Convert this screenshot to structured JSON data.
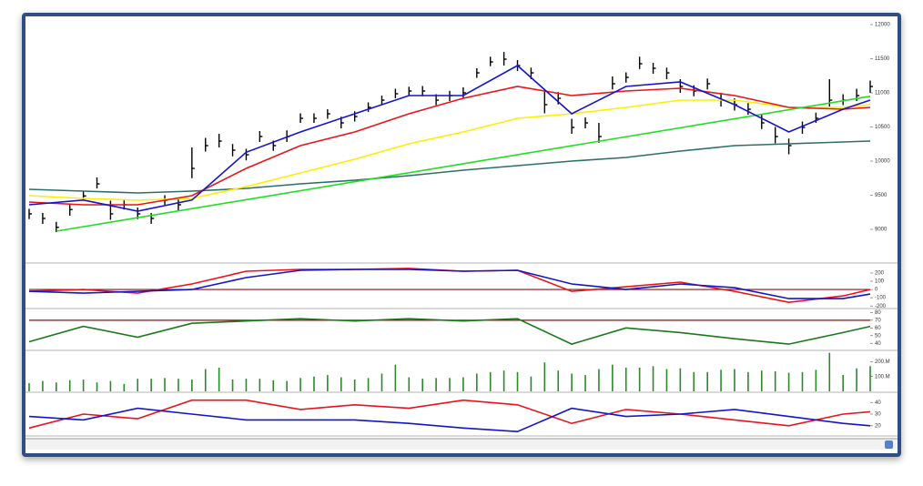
{
  "chart_data": [
    {
      "type": "ohlc",
      "xlim": [
        0,
        62
      ],
      "ylim": [
        8520,
        12067
      ],
      "yticks": [
        12000,
        11500,
        11000,
        10500,
        10000,
        9500,
        9000
      ],
      "bars": {
        "color": "#000000",
        "high": [
          9300,
          9240,
          9110,
          9380,
          9560,
          9760,
          9420,
          9430,
          9320,
          9240,
          9500,
          9440,
          10200,
          10340,
          10400,
          10250,
          10180,
          10440,
          10300,
          10450,
          10700,
          10700,
          10760,
          10650,
          10730,
          10860,
          10960,
          11060,
          11090,
          11100,
          10980,
          11030,
          11080,
          11360,
          11530,
          11600,
          11480,
          11370,
          11030,
          11010,
          10620,
          10640,
          10560,
          11240,
          11300,
          11530,
          11440,
          11370,
          11200,
          11110,
          11210,
          11000,
          10920,
          10850,
          10680,
          10500,
          10330,
          10580,
          10710,
          11200,
          10980,
          11060,
          11180
        ],
        "low": [
          9150,
          9080,
          8960,
          9200,
          9420,
          9600,
          9140,
          9290,
          9150,
          9080,
          9360,
          9280,
          9750,
          10140,
          10200,
          10070,
          10010,
          10280,
          10150,
          10280,
          10560,
          10560,
          10620,
          10480,
          10580,
          10720,
          10820,
          10920,
          10960,
          10950,
          10820,
          10880,
          10930,
          11220,
          11390,
          11400,
          11320,
          11200,
          10700,
          10830,
          10400,
          10480,
          10270,
          11050,
          11150,
          11350,
          11280,
          11200,
          11000,
          10950,
          11050,
          10800,
          10740,
          10680,
          10470,
          10260,
          10100,
          10400,
          10560,
          10800,
          10820,
          10880,
          11000
        ],
        "close": [
          9227,
          9160,
          9030,
          9290,
          9490,
          9667,
          9227,
          9360,
          9227,
          9160,
          9427,
          9360,
          9893,
          10227,
          10293,
          10160,
          10093,
          10360,
          10227,
          10360,
          10627,
          10627,
          10693,
          10560,
          10653,
          10787,
          10893,
          10987,
          11027,
          11027,
          10893,
          10960,
          11000,
          11293,
          11453,
          11493,
          11400,
          11293,
          10827,
          10920,
          10493,
          10560,
          10360,
          11133,
          11227,
          11427,
          11360,
          11293,
          11093,
          11027,
          11133,
          10893,
          10827,
          10760,
          10560,
          10360,
          10227,
          10493,
          10627,
          10893,
          10893,
          10960,
          11093
        ]
      },
      "series": [
        {
          "color": "#2e6e6a",
          "x": [
            0,
            4,
            8,
            12,
            16,
            20,
            24,
            28,
            32,
            36,
            40,
            44,
            48,
            52,
            56,
            60,
            62
          ],
          "values": [
            9587,
            9560,
            9533,
            9560,
            9600,
            9667,
            9720,
            9787,
            9867,
            9933,
            10000,
            10053,
            10147,
            10227,
            10253,
            10280,
            10293
          ]
        },
        {
          "color": "#ffee00",
          "x": [
            0,
            4,
            8,
            12,
            16,
            20,
            24,
            28,
            32,
            36,
            40,
            44,
            48,
            52,
            56,
            60,
            62
          ],
          "values": [
            9493,
            9453,
            9427,
            9453,
            9627,
            9827,
            10027,
            10253,
            10427,
            10627,
            10693,
            10787,
            10893,
            10893,
            10787,
            10787,
            10827
          ]
        },
        {
          "color": "#e8141a",
          "x": [
            0,
            4,
            8,
            12,
            16,
            20,
            24,
            28,
            32,
            36,
            40,
            44,
            48,
            52,
            56,
            60,
            62
          ],
          "values": [
            9400,
            9360,
            9360,
            9493,
            9893,
            10227,
            10427,
            10693,
            10920,
            11093,
            10960,
            11027,
            11067,
            10960,
            10787,
            10760,
            10787
          ]
        },
        {
          "color": "#22dd22",
          "x": [
            2,
            62
          ],
          "values": [
            8973,
            10950
          ]
        },
        {
          "color": "#1515c8",
          "x": [
            0,
            4,
            8,
            12,
            16,
            20,
            24,
            28,
            32,
            36,
            40,
            44,
            48,
            52,
            56,
            60,
            62
          ],
          "values": [
            9360,
            9430,
            9267,
            9430,
            10130,
            10427,
            10693,
            10960,
            10960,
            11400,
            10693,
            11093,
            11160,
            10827,
            10427,
            10760,
            10893
          ]
        }
      ]
    },
    {
      "type": "line",
      "xlim": [
        0,
        62
      ],
      "ylim": [
        -220,
        310
      ],
      "yticks": [
        200,
        100,
        0,
        -100,
        -200
      ],
      "hline": {
        "value": 0,
        "color": "#8b1010"
      },
      "series": [
        {
          "color": "#e8141a",
          "x": [
            0,
            4,
            8,
            12,
            16,
            20,
            24,
            28,
            32,
            36,
            40,
            44,
            48,
            52,
            56,
            60,
            62
          ],
          "values": [
            -22,
            0,
            -44,
            67,
            222,
            244,
            244,
            256,
            222,
            233,
            -22,
            33,
            89,
            -22,
            -156,
            -78,
            0
          ]
        },
        {
          "color": "#1515c8",
          "x": [
            0,
            4,
            8,
            12,
            16,
            20,
            24,
            28,
            32,
            36,
            40,
            44,
            48,
            52,
            56,
            60,
            62
          ],
          "values": [
            -22,
            -44,
            -22,
            0,
            144,
            233,
            244,
            244,
            222,
            233,
            67,
            0,
            67,
            22,
            -111,
            -111,
            -56
          ]
        }
      ]
    },
    {
      "type": "line",
      "xlim": [
        0,
        62
      ],
      "ylim": [
        32,
        84
      ],
      "yticks": [
        80,
        70,
        60,
        50,
        40
      ],
      "hline": {
        "value": 70,
        "color": "#8b1010"
      },
      "series": [
        {
          "color": "#1a7a1a",
          "x": [
            0,
            4,
            8,
            12,
            16,
            20,
            24,
            28,
            32,
            36,
            40,
            44,
            48,
            52,
            56,
            60,
            62
          ],
          "values": [
            42,
            62,
            48,
            66,
            69,
            72,
            69,
            72,
            69,
            72,
            39,
            60,
            54,
            46,
            39,
            54,
            62
          ]
        }
      ]
    },
    {
      "type": "bar",
      "xlim": [
        0,
        62
      ],
      "ylim": [
        0,
        270000000.0
      ],
      "yticks": [
        {
          "value": 200000000.0,
          "label": "200.M"
        },
        {
          "value": 100000000.0,
          "label": "100.M"
        }
      ],
      "color": "#2a8a2a",
      "values": [
        55000000.0,
        70000000.0,
        60000000.0,
        75000000.0,
        80000000.0,
        60000000.0,
        70000000.0,
        50000000.0,
        85000000.0,
        85000000.0,
        90000000.0,
        85000000.0,
        80000000.0,
        150000000.0,
        160000000.0,
        80000000.0,
        85000000.0,
        85000000.0,
        75000000.0,
        70000000.0,
        90000000.0,
        100000000.0,
        110000000.0,
        95000000.0,
        80000000.0,
        90000000.0,
        120000000.0,
        180000000.0,
        95000000.0,
        85000000.0,
        90000000.0,
        90000000.0,
        95000000.0,
        120000000.0,
        130000000.0,
        140000000.0,
        130000000.0,
        100000000.0,
        195000000.0,
        140000000.0,
        120000000.0,
        110000000.0,
        150000000.0,
        180000000.0,
        160000000.0,
        160000000.0,
        170000000.0,
        150000000.0,
        155000000.0,
        130000000.0,
        130000000.0,
        145000000.0,
        150000000.0,
        130000000.0,
        140000000.0,
        135000000.0,
        125000000.0,
        130000000.0,
        145000000.0,
        260000000.0,
        110000000.0,
        155000000.0,
        170000000.0
      ]
    },
    {
      "type": "line",
      "xlim": [
        0,
        62
      ],
      "ylim": [
        12,
        48
      ],
      "yticks": [
        40,
        30,
        20
      ],
      "series": [
        {
          "color": "#e8141a",
          "x": [
            0,
            4,
            8,
            12,
            16,
            20,
            24,
            28,
            32,
            36,
            40,
            44,
            48,
            52,
            56,
            60,
            62
          ],
          "values": [
            18,
            30,
            26,
            42,
            42,
            34,
            38,
            35,
            42,
            38,
            22,
            34,
            30,
            25,
            20,
            30,
            32
          ]
        },
        {
          "color": "#1515c8",
          "x": [
            0,
            4,
            8,
            12,
            16,
            20,
            24,
            28,
            32,
            36,
            40,
            44,
            48,
            52,
            56,
            60,
            62
          ],
          "values": [
            28,
            25,
            35,
            30,
            25,
            25,
            25,
            22,
            18,
            15,
            35,
            28,
            30,
            34,
            28,
            22,
            20
          ]
        }
      ]
    }
  ]
}
